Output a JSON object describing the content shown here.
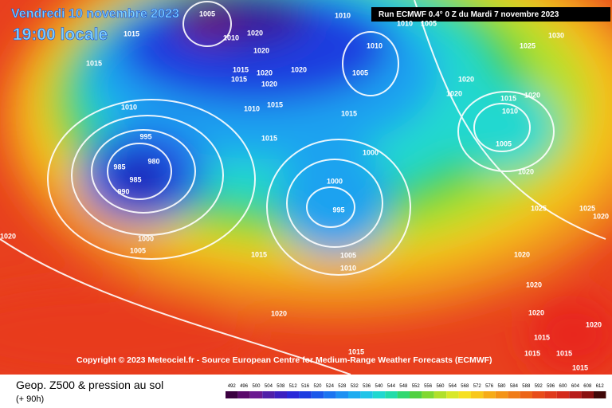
{
  "header": {
    "date": "Vendredi 10 novembre 2023",
    "time": "19:00 locale",
    "run": "Run ECMWF 0.4° 0 Z du Mardi 7 novembre 2023"
  },
  "copyright": "Copyright © 2023 Meteociel.fr - Source European Centre for Medium-Range Weather Forecasts (ECMWF)",
  "legend": {
    "title": "Geop. Z500 & pression au sol",
    "lead": "(+ 90h)",
    "scale": [
      492,
      496,
      500,
      504,
      508,
      512,
      516,
      520,
      524,
      528,
      532,
      536,
      540,
      544,
      548,
      552,
      556,
      560,
      564,
      568,
      572,
      576,
      580,
      584,
      588,
      592,
      596,
      600,
      604,
      608,
      612
    ]
  },
  "pressure_labels": [
    "1005",
    "1010",
    "1020",
    "1020",
    "1015",
    "1015",
    "1020",
    "1020",
    "1020",
    "1015",
    "1010",
    "1015",
    "1010",
    "1015",
    "1010",
    "1005",
    "1020",
    "1020",
    "1015",
    "1010",
    "1020",
    "1005",
    "1025",
    "1030",
    "995",
    "985",
    "980",
    "985",
    "990",
    "1000",
    "1000",
    "995",
    "1020",
    "1000",
    "1005",
    "1015",
    "1005",
    "1010",
    "1020",
    "1020",
    "1025",
    "1025",
    "1020",
    "1020",
    "1020",
    "1020",
    "1020",
    "1015",
    "1015",
    "1015",
    "1015",
    "1015",
    "1015",
    "1010",
    "1010",
    "1005",
    "1015"
  ]
}
